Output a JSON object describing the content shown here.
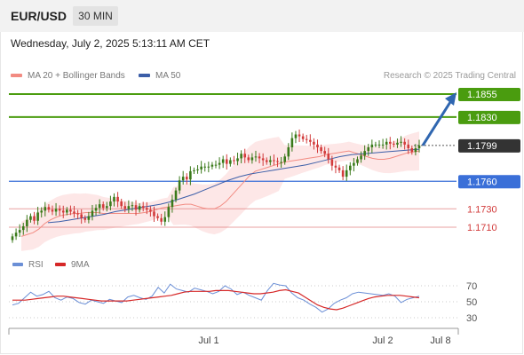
{
  "header": {
    "symbol": "EUR/USD",
    "timeframe": "30 MIN"
  },
  "timestamp": "Wednesday, July 2, 2025 5:13:11 AM CET",
  "legend": {
    "ma20_label": "MA 20 + Bollinger Bands",
    "ma50_label": "MA 50",
    "copyright": "Research © 2025 Trading Central"
  },
  "rsi_legend": {
    "rsi_label": "RSI",
    "ma_label": "9MA"
  },
  "colors": {
    "ma20": "#f28b82",
    "ma50": "#3c5ea8",
    "resistance": "#4a9c0f",
    "support": "#3a6fd8",
    "support_weak": "#e07a7a",
    "current": "#333333",
    "bull": "#3a7a1a",
    "bear": "#d23b3b",
    "band": "#fde4e4",
    "rsi": "#6b8fd6",
    "rsi_ma": "#d62828",
    "arrow": "#2f66b0"
  },
  "chart_data": [
    {
      "type": "candlestick",
      "instrument": "EUR/USD",
      "timeframe": "30 MIN",
      "x_tick_labels": [
        "Jul 1",
        "Jul 2",
        "Jul 8"
      ],
      "ylim": [
        1.1685,
        1.1875
      ],
      "levels": [
        {
          "name": "resistance-2",
          "value": 1.1855,
          "label": "1.1855",
          "style": "green-line"
        },
        {
          "name": "resistance-1",
          "value": 1.183,
          "label": "1.1830",
          "style": "green-line"
        },
        {
          "name": "current-price",
          "value": 1.1799,
          "label": "1.1799",
          "style": "dotted"
        },
        {
          "name": "support-1",
          "value": 1.176,
          "label": "1.1760",
          "style": "blue-line"
        },
        {
          "name": "support-2",
          "value": 1.173,
          "label": "1.1730",
          "style": "red-line"
        },
        {
          "name": "support-3",
          "value": 1.171,
          "label": "1.1710",
          "style": "red-line"
        }
      ],
      "closes": [
        1.17,
        1.1704,
        1.1707,
        1.1711,
        1.1718,
        1.1722,
        1.1717,
        1.1726,
        1.1728,
        1.1732,
        1.1729,
        1.1727,
        1.173,
        1.1728,
        1.1726,
        1.1729,
        1.1727,
        1.1725,
        1.1724,
        1.172,
        1.1718,
        1.1722,
        1.1728,
        1.1731,
        1.1735,
        1.1731,
        1.1733,
        1.1738,
        1.1743,
        1.1738,
        1.1733,
        1.173,
        1.1733,
        1.1734,
        1.1729,
        1.1733,
        1.1731,
        1.1729,
        1.1727,
        1.1722,
        1.172,
        1.1716,
        1.1721,
        1.1732,
        1.174,
        1.175,
        1.1761,
        1.1765,
        1.1762,
        1.1771,
        1.1772,
        1.1773,
        1.1776,
        1.1776,
        1.1776,
        1.1778,
        1.1778,
        1.178,
        1.1784,
        1.1779,
        1.1783,
        1.1782,
        1.1785,
        1.179,
        1.1786,
        1.1783,
        1.1786,
        1.1787,
        1.1785,
        1.1783,
        1.1781,
        1.1783,
        1.1782,
        1.1781,
        1.1781,
        1.1787,
        1.1797,
        1.1807,
        1.1811,
        1.1809,
        1.1806,
        1.1805,
        1.1803,
        1.18,
        1.1797,
        1.1793,
        1.179,
        1.1784,
        1.1777,
        1.1775,
        1.1772,
        1.1765,
        1.1772,
        1.1777,
        1.178,
        1.1784,
        1.1788,
        1.1793,
        1.1797,
        1.18,
        1.18,
        1.18,
        1.18,
        1.1803,
        1.1801,
        1.18,
        1.1802,
        1.1803,
        1.18,
        1.1796,
        1.1792,
        1.1796,
        1.1799
      ],
      "ma20": [
        1.17,
        1.1702,
        1.1704,
        1.1708,
        1.1714,
        1.1718,
        1.1721,
        1.1723,
        1.1724,
        1.1725,
        1.1725,
        1.1726,
        1.1726,
        1.1726,
        1.1725,
        1.1725,
        1.1725,
        1.1725,
        1.1725,
        1.1725,
        1.1725,
        1.1726,
        1.1727,
        1.1729,
        1.1731,
        1.1732,
        1.1733,
        1.1734,
        1.1735,
        1.1735,
        1.1733,
        1.1731,
        1.173,
        1.173,
        1.1733,
        1.1738,
        1.1745,
        1.1752,
        1.1759,
        1.1766,
        1.1771,
        1.1773,
        1.1775,
        1.1777,
        1.1779,
        1.1781,
        1.1782,
        1.1783,
        1.1784,
        1.1785,
        1.1786,
        1.1787,
        1.1789,
        1.179,
        1.1791,
        1.1792,
        1.1793,
        1.1791,
        1.1789,
        1.1787,
        1.1785,
        1.1784,
        1.1784,
        1.1785,
        1.1787,
        1.1789,
        1.1791,
        1.1792,
        1.1793
      ],
      "ma50": [
        1.1715,
        1.1716,
        1.1718,
        1.172,
        1.1722,
        1.1724,
        1.1727,
        1.1729,
        1.1731,
        1.1733,
        1.1735,
        1.1738,
        1.1742,
        1.1746,
        1.1751,
        1.1756,
        1.1761,
        1.1765,
        1.1768,
        1.177,
        1.1772,
        1.1774,
        1.1776,
        1.1778,
        1.1781,
        1.1784,
        1.1787,
        1.1789,
        1.179,
        1.1791,
        1.1792,
        1.1793,
        1.1794,
        1.1795
      ],
      "projection": {
        "from": 1.1799,
        "to": 1.1855
      }
    },
    {
      "type": "line",
      "title": "RSI",
      "y_ticks": [
        30,
        50,
        70
      ],
      "ylim": [
        20,
        80
      ],
      "rsi": [
        46,
        48,
        55,
        62,
        57,
        59,
        63,
        55,
        52,
        56,
        54,
        49,
        47,
        52,
        50,
        48,
        53,
        51,
        49,
        56,
        58,
        55,
        53,
        57,
        68,
        61,
        72,
        66,
        64,
        62,
        67,
        65,
        63,
        60,
        63,
        70,
        66,
        59,
        62,
        58,
        55,
        52,
        64,
        73,
        71,
        70,
        61,
        55,
        52,
        47,
        43,
        37,
        41,
        48,
        52,
        55,
        60,
        62,
        61,
        60,
        59,
        58,
        60,
        57,
        49,
        53,
        55,
        57
      ],
      "rsi_ma": [
        52,
        52,
        52,
        53,
        54,
        55,
        56,
        57,
        57,
        56,
        55,
        54,
        53,
        52,
        51,
        51,
        51,
        51,
        51,
        52,
        53,
        54,
        55,
        56,
        57,
        58,
        60,
        62,
        63,
        63,
        63,
        63,
        64,
        64,
        64,
        63,
        62,
        61,
        60,
        60,
        61,
        62,
        64,
        65,
        63,
        61,
        56,
        51,
        46,
        43,
        41,
        40,
        42,
        45,
        48,
        51,
        54,
        56,
        57,
        58,
        58,
        58,
        57,
        56,
        55
      ]
    }
  ]
}
